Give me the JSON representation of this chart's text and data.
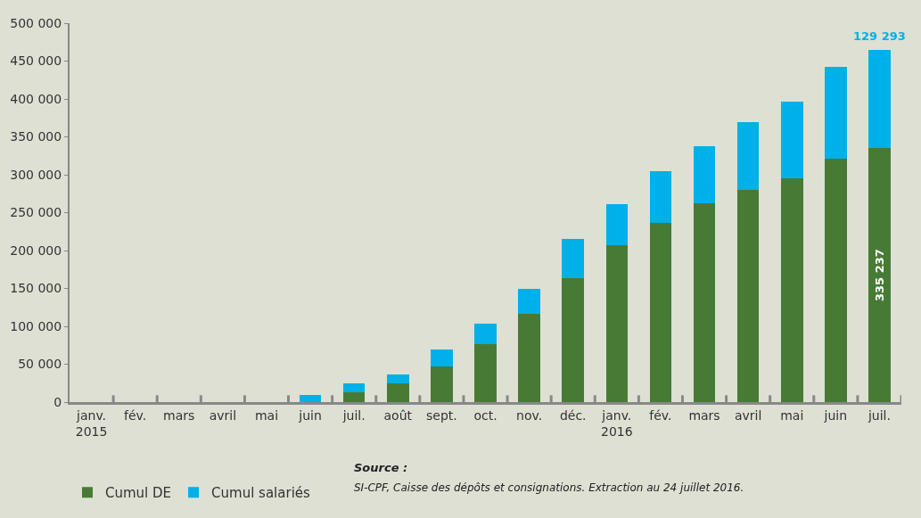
{
  "chart_data": {
    "type": "bar",
    "stacked": true,
    "categories": [
      "janv.\n2015",
      "fév.",
      "mars",
      "avril",
      "mai",
      "juin",
      "juil.",
      "août",
      "sept.",
      "oct.",
      "nov.",
      "déc.",
      "janv.\n2016",
      "fév.",
      "mars",
      "avril",
      "mai",
      "juin",
      "juil."
    ],
    "series": [
      {
        "name": "Cumul DE",
        "color": "#477b35",
        "values": [
          0,
          0,
          0,
          0,
          0,
          0,
          13000,
          25000,
          47000,
          76000,
          116000,
          164000,
          207000,
          236000,
          262000,
          280000,
          295000,
          321000,
          335237
        ],
        "value_labels": [
          null,
          null,
          null,
          null,
          null,
          null,
          null,
          null,
          null,
          null,
          null,
          null,
          null,
          null,
          null,
          null,
          null,
          null,
          "335 237"
        ]
      },
      {
        "name": "Cumul salariés",
        "color": "#00b0e8",
        "values": [
          0,
          0,
          0,
          0,
          0,
          9000,
          12000,
          12000,
          22000,
          27000,
          33000,
          51000,
          54000,
          69000,
          76000,
          89000,
          102000,
          121000,
          129293
        ],
        "value_labels": [
          null,
          null,
          null,
          null,
          null,
          null,
          null,
          null,
          null,
          null,
          null,
          null,
          null,
          null,
          null,
          null,
          null,
          null,
          "129 293"
        ]
      }
    ],
    "ylim": [
      0,
      500000
    ],
    "yticks": [
      0,
      {
        "value": 50000,
        "label": "50 000"
      },
      {
        "value": 100000,
        "label": "100 000"
      },
      {
        "value": 150000,
        "label": "150 000"
      },
      {
        "value": 200000,
        "label": "200 000"
      },
      {
        "value": 250000,
        "label": "250 000"
      },
      {
        "value": 300000,
        "label": "300 000"
      },
      {
        "value": 350000,
        "label": "350 000"
      },
      {
        "value": 400000,
        "label": "400 000"
      },
      {
        "value": 450000,
        "label": "450 000"
      },
      {
        "value": 500000,
        "label": "500 000"
      }
    ],
    "grid": false,
    "legend": "bottom left",
    "annotations": [
      "Source :",
      "SI-CPF, Caisse des dépôts et consignations. Extraction au 24 juillet 2016."
    ]
  }
}
